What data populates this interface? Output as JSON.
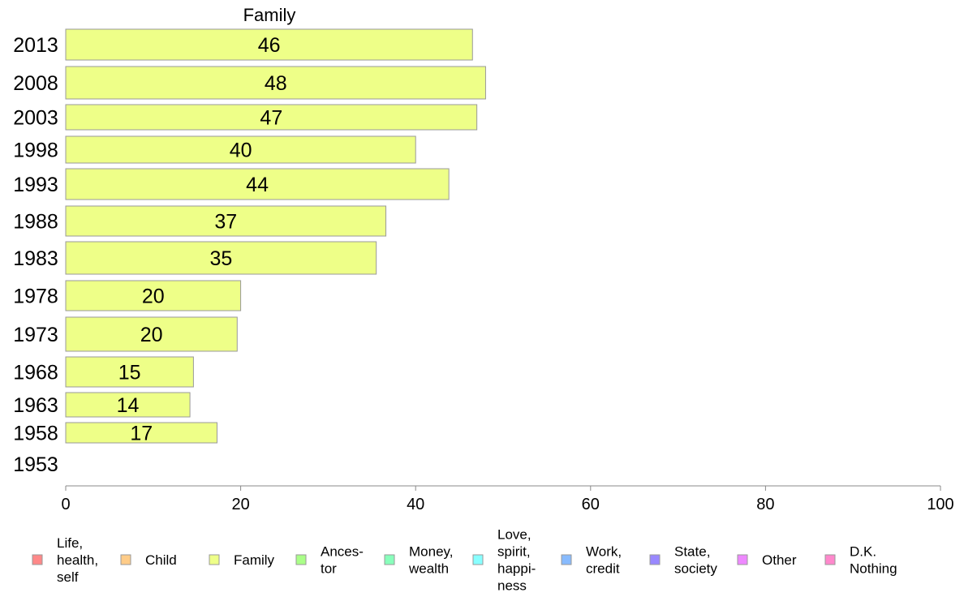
{
  "chart_data": {
    "type": "bar",
    "orientation": "horizontal",
    "title": "Family",
    "categories": [
      "2013",
      "2008",
      "2003",
      "1998",
      "1993",
      "1988",
      "1983",
      "1978",
      "1973",
      "1968",
      "1963",
      "1958",
      "1953"
    ],
    "values": [
      46.5,
      48,
      47,
      40,
      43.8,
      36.6,
      35.5,
      20,
      19.6,
      14.6,
      14.2,
      17.3,
      null
    ],
    "value_labels": [
      "46",
      "48",
      "47",
      "40",
      "44",
      "37",
      "35",
      "20",
      "20",
      "15",
      "14",
      "17",
      ""
    ],
    "xlim": [
      0,
      100
    ],
    "xticks": [
      "0",
      "20",
      "40",
      "60",
      "80",
      "100"
    ],
    "bar_color": "#eeff88",
    "bar_edge_color": "#999999",
    "grid": false,
    "legend_position": "bottom",
    "legend": [
      {
        "label": "Life,\nhealth,\nself",
        "color": "#ff8888"
      },
      {
        "label": "Child",
        "color": "#ffcc88"
      },
      {
        "label": "Family",
        "color": "#eeff88"
      },
      {
        "label": "Ances-\ntor",
        "color": "#aaff88"
      },
      {
        "label": "Money,\nwealth",
        "color": "#88ffbb"
      },
      {
        "label": "Love,\nspirit,\nhappi-\nness",
        "color": "#88ffff"
      },
      {
        "label": "Work,\ncredit",
        "color": "#88bbff"
      },
      {
        "label": "State,\nsociety",
        "color": "#9988ff"
      },
      {
        "label": "Other",
        "color": "#ee88ff"
      },
      {
        "label": "D.K.\nNothing",
        "color": "#ff88cc"
      }
    ]
  }
}
